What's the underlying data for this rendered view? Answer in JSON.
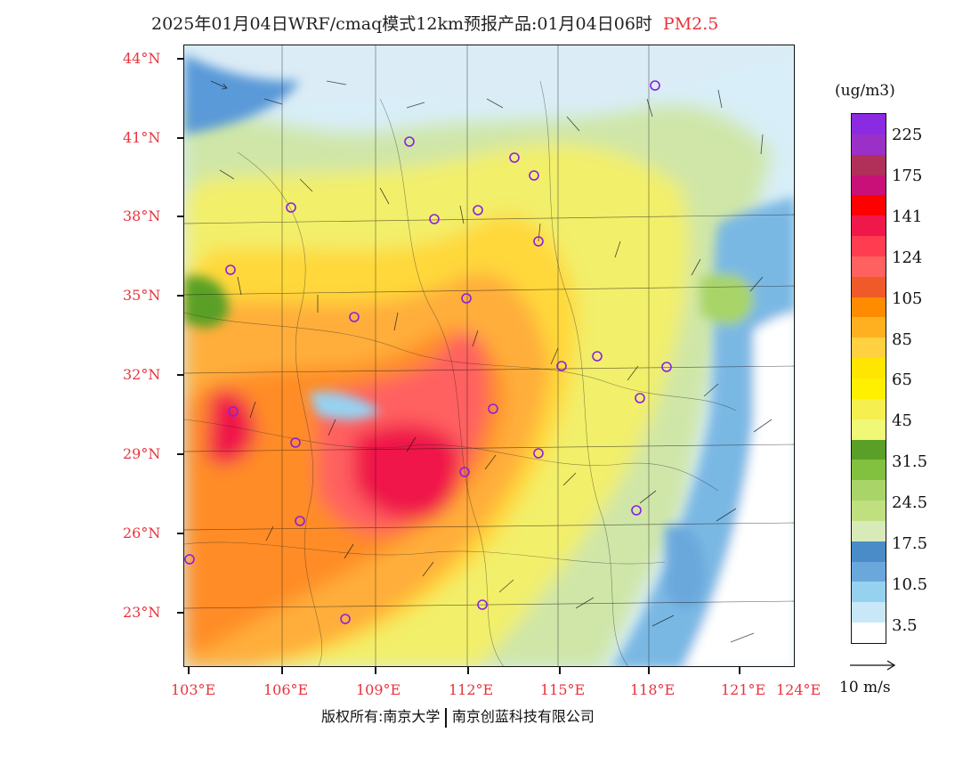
{
  "title": {
    "text": "2025年01月04日WRF/cmaq模式12km预报产品:01月04日06时",
    "pollutant": "PM2.5"
  },
  "axes": {
    "lat_labels": [
      "44°N",
      "41°N",
      "38°N",
      "35°N",
      "32°N",
      "29°N",
      "26°N",
      "23°N"
    ],
    "lon_labels": [
      "103°E",
      "106°E",
      "109°E",
      "112°E",
      "115°E",
      "118°E",
      "121°E",
      "124°E"
    ]
  },
  "colorbar": {
    "unit": "(ug/m3)",
    "colors": [
      "#8a2be2",
      "#9b30c8",
      "#b0305a",
      "#c81078",
      "#ff0000",
      "#f0184a",
      "#ff3c50",
      "#ff6060",
      "#f05a28",
      "#ff8c00",
      "#ffb020",
      "#ffd040",
      "#ffe600",
      "#fff000",
      "#f5f050",
      "#f0f878",
      "#5aa028",
      "#82c040",
      "#a8d468",
      "#c0e080",
      "#d8eab8",
      "#4a8cc8",
      "#6aa8dc",
      "#96d2f0",
      "#c8e8f8",
      "#ffffff"
    ],
    "labels": [
      "225",
      "175",
      "141",
      "124",
      "105",
      "85",
      "65",
      "45",
      "31.5",
      "24.5",
      "17.5",
      "10.5",
      "3.5"
    ]
  },
  "wind_reference": {
    "label": "10 m/s"
  },
  "credits": {
    "left": "版权所有:南京大学",
    "right": "南京创蓝科技有限公司"
  }
}
